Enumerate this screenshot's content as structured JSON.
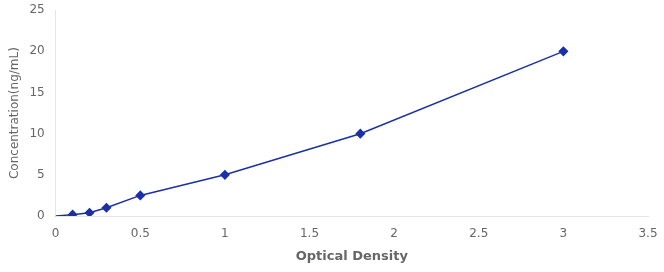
{
  "chart_data": {
    "type": "line",
    "x_label": "Optical Density",
    "y_label": "Concentration(ng/mL)",
    "x": [
      0.0,
      0.1,
      0.2,
      0.3,
      0.5,
      1.0,
      1.8,
      3.0
    ],
    "values": [
      0.0,
      0.16,
      0.4,
      1.0,
      2.5,
      5.0,
      10.0,
      20.0
    ],
    "color": "#1c2faa",
    "marker": "diamond",
    "line_style": "solid",
    "xlim": [
      0,
      3.5
    ],
    "ylim": [
      0,
      25
    ],
    "xticks": [
      0,
      0.5,
      1,
      1.5,
      2,
      2.5,
      3,
      3.5
    ],
    "yticks": [
      0,
      5,
      10,
      15,
      20,
      25
    ],
    "grid": false
  }
}
